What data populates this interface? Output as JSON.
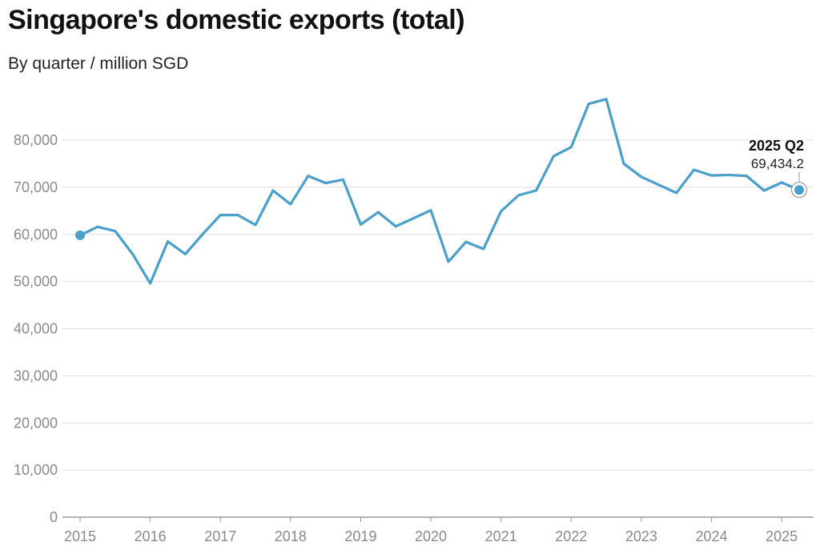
{
  "chart_data": {
    "type": "line",
    "title": "Singapore's domestic exports (total)",
    "subtitle": "By quarter / million SGD",
    "xlabel": "",
    "ylabel": "",
    "ylim": [
      0,
      90000
    ],
    "y_ticks": [
      0,
      10000,
      20000,
      30000,
      40000,
      50000,
      60000,
      70000,
      80000
    ],
    "y_tick_labels": [
      "0",
      "10,000",
      "20,000",
      "30,000",
      "40,000",
      "50,000",
      "60,000",
      "70,000",
      "80,000"
    ],
    "x_tick_labels": [
      "2015",
      "2016",
      "2017",
      "2018",
      "2019",
      "2020",
      "2021",
      "2022",
      "2023",
      "2024",
      "2025"
    ],
    "grid": true,
    "line_color": "#4a9fcb",
    "series": [
      {
        "x": [
          "2015 Q1",
          "2015 Q2",
          "2015 Q3",
          "2015 Q4",
          "2016 Q1",
          "2016 Q2",
          "2016 Q3",
          "2016 Q4",
          "2017 Q1",
          "2017 Q2",
          "2017 Q3",
          "2017 Q4",
          "2018 Q1",
          "2018 Q2",
          "2018 Q3",
          "2018 Q4",
          "2019 Q1",
          "2019 Q2",
          "2019 Q3",
          "2019 Q4",
          "2020 Q1",
          "2020 Q2",
          "2020 Q3",
          "2020 Q4",
          "2021 Q1",
          "2021 Q2",
          "2021 Q3",
          "2021 Q4",
          "2022 Q1",
          "2022 Q2",
          "2022 Q3",
          "2022 Q4",
          "2023 Q1",
          "2023 Q2",
          "2023 Q3",
          "2023 Q4",
          "2024 Q1",
          "2024 Q2",
          "2024 Q3",
          "2024 Q4",
          "2025 Q1",
          "2025 Q2"
        ],
        "values": [
          59800,
          61600,
          60700,
          55800,
          49600,
          58500,
          55800,
          60100,
          64100,
          64100,
          62000,
          69300,
          66400,
          72400,
          70900,
          71600,
          62100,
          64700,
          61700,
          63400,
          65100,
          54200,
          58400,
          56900,
          64900,
          68300,
          69300,
          76600,
          78500,
          87700,
          88700,
          75000,
          72200,
          70500,
          68800,
          73700,
          72500,
          72600,
          72400,
          69300,
          71000,
          69434.2
        ]
      }
    ],
    "annotation": {
      "label": "2025 Q2",
      "value_text": "69,434.2"
    }
  }
}
